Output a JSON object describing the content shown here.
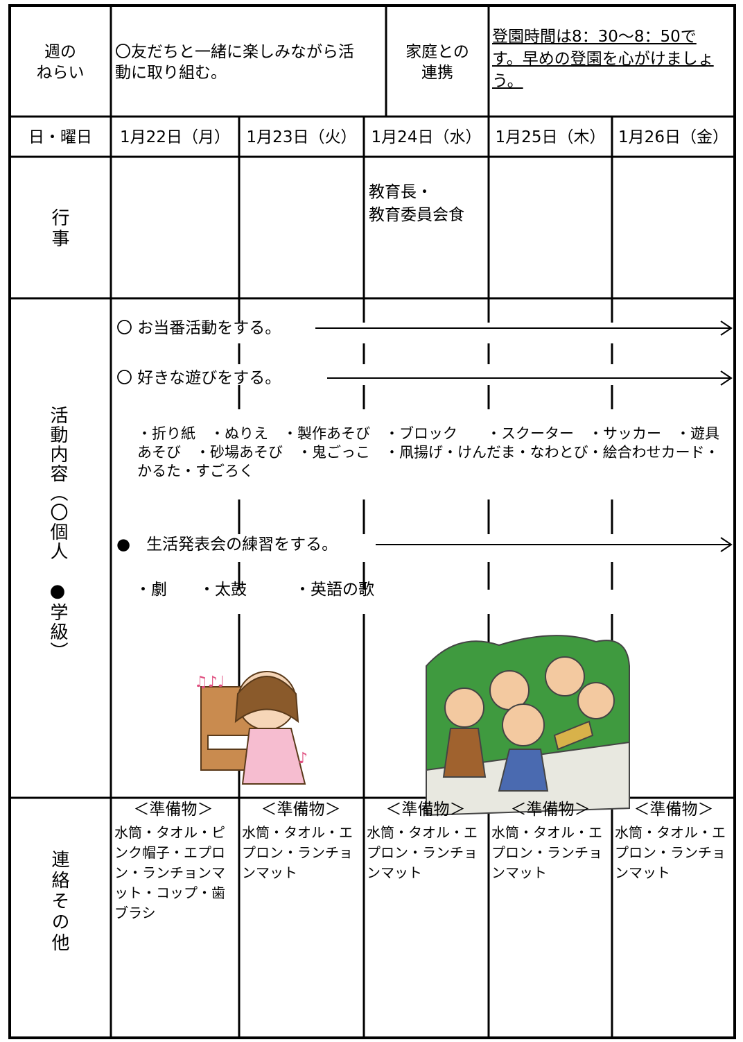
{
  "aim": {
    "label": [
      "週の",
      "ねらい"
    ],
    "text": [
      "〇友だちと一緒に楽しみながら活",
      "動に取り組む。"
    ]
  },
  "home": {
    "label": [
      "家庭との",
      "連携"
    ],
    "text": [
      "登園時間は8：30〜8：50で",
      "す。早めの登園を心がけましょ",
      "う。"
    ]
  },
  "days": {
    "label": "日・曜日",
    "dates": [
      "1月22日（月）",
      "1月23日（火）",
      "1月24日（水）",
      "1月25日（木）",
      "1月26日（金）"
    ]
  },
  "events": {
    "label": "行事",
    "wednesday": [
      "教育長・",
      "教育委員会食"
    ]
  },
  "activities": {
    "label": "活動内容（〇個人　●学級）",
    "items": [
      {
        "text": "〇 お当番活動をする。"
      },
      {
        "text": "〇 好きな遊びをする。",
        "details": "・折り紙　・ぬりえ　・製作あそび　・ブロック　　・スクーター　・サッカー　・遊具あそび　・砂場あそび　・鬼ごっこ　・凧揚げ・けんだま・なわとび・絵合わせカード・かるた・すごろく"
      },
      {
        "text": "●　生活発表会の練習をする。",
        "details": "・劇　　・太鼓　　　・英語の歌"
      }
    ]
  },
  "notes": {
    "label": "連絡その他",
    "cells": [
      {
        "heading": "＜準備物＞",
        "text": "水筒・タオル・ピンク帽子・エプロン・ランチョンマット・コップ・歯ブラシ"
      },
      {
        "heading": "＜準備物＞",
        "text": "水筒・タオル・エプロン・ランチョンマット"
      },
      {
        "heading": "＜準備物＞",
        "text": "水筒・タオル・エプロン・ランチョンマット"
      },
      {
        "heading": "＜準備物＞",
        "text": "水筒・タオル・エプロン・ランチョンマット"
      },
      {
        "heading": "＜準備物＞",
        "text": "水筒・タオル・エプロン・ランチョンマット"
      }
    ]
  }
}
